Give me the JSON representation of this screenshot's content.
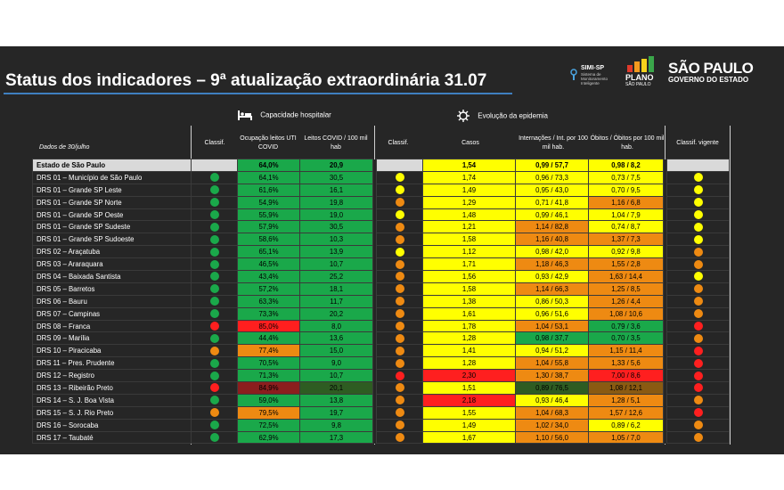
{
  "title": "Status dos indicadores – 9ª atualização extraordinária 31.07",
  "logos": {
    "simi": "SIMI-SP",
    "simi_sub": "Sistema de Monitoramento Inteligente",
    "plano_l1": "PLANO",
    "plano_l2": "SÃO PAULO",
    "sp_l1": "SÃO PAULO",
    "sp_l2": "GOVERNO DO ESTADO"
  },
  "sections": {
    "capacidade": "Capacidade hospitalar",
    "evolucao": "Evolução da epidemia"
  },
  "headers": {
    "dados": "Dados de 30/julho",
    "classif1": "Classif.",
    "ocupacao": "Ocupação leitos UTI COVID",
    "leitos": "Leitos COVID / 100 mil hab",
    "classif2": "Classif.",
    "casos": "Casos",
    "internacoes": "Internações / Int. por 100 mil hab.",
    "obitos": "Óbitos / Óbitos por 100 mil hab.",
    "vigente": "Classif. vigente"
  },
  "colors": {
    "green": "#1aa84a",
    "yellow": "#ffff00",
    "orange": "#ee8a12",
    "red": "#ff1f1f",
    "dark_red": "#8b1e1e",
    "dark_green": "#2e5c22",
    "dark_orange": "#8a5a12"
  },
  "rows": [
    {
      "name": "Estado de São Paulo",
      "c1": "",
      "ocup": "64,0%",
      "ocup_c": "g",
      "leitos": "20,9",
      "leitos_c": "g",
      "c2": "",
      "casos": "1,54",
      "casos_c": "y",
      "int": "0,99 / 57,7",
      "int_c": "y",
      "obi": "0,98 / 8,2",
      "obi_c": "y",
      "vig": "",
      "state": true
    },
    {
      "name": "DRS 01 – Município de São Paulo",
      "c1": "g",
      "ocup": "64,1%",
      "ocup_c": "g",
      "leitos": "30,5",
      "leitos_c": "g",
      "c2": "y",
      "casos": "1,74",
      "casos_c": "y",
      "int": "0,96 / 73,3",
      "int_c": "y",
      "obi": "0,73 / 7,5",
      "obi_c": "y",
      "vig": "y"
    },
    {
      "name": "DRS 01 – Grande SP Leste",
      "c1": "g",
      "ocup": "61,6%",
      "ocup_c": "g",
      "leitos": "16,1",
      "leitos_c": "g",
      "c2": "y",
      "casos": "1,49",
      "casos_c": "y",
      "int": "0,95 / 43,0",
      "int_c": "y",
      "obi": "0,70 / 9,5",
      "obi_c": "y",
      "vig": "y"
    },
    {
      "name": "DRS 01 – Grande SP Norte",
      "c1": "g",
      "ocup": "54,9%",
      "ocup_c": "g",
      "leitos": "19,8",
      "leitos_c": "g",
      "c2": "o",
      "casos": "1,29",
      "casos_c": "y",
      "int": "0,71 / 41,8",
      "int_c": "y",
      "obi": "1,16 / 6,8",
      "obi_c": "o",
      "vig": "y"
    },
    {
      "name": "DRS 01 – Grande SP Oeste",
      "c1": "g",
      "ocup": "55,9%",
      "ocup_c": "g",
      "leitos": "19,0",
      "leitos_c": "g",
      "c2": "y",
      "casos": "1,48",
      "casos_c": "y",
      "int": "0,99 / 46,1",
      "int_c": "y",
      "obi": "1,04 / 7,9",
      "obi_c": "y",
      "vig": "y"
    },
    {
      "name": "DRS 01 – Grande SP Sudeste",
      "c1": "g",
      "ocup": "57,9%",
      "ocup_c": "g",
      "leitos": "30,5",
      "leitos_c": "g",
      "c2": "o",
      "casos": "1,21",
      "casos_c": "y",
      "int": "1,14 / 82,8",
      "int_c": "o",
      "obi": "0,74 / 8,7",
      "obi_c": "y",
      "vig": "y"
    },
    {
      "name": "DRS 01 – Grande SP Sudoeste",
      "c1": "g",
      "ocup": "58,6%",
      "ocup_c": "g",
      "leitos": "10,3",
      "leitos_c": "g",
      "c2": "o",
      "casos": "1,58",
      "casos_c": "y",
      "int": "1,16 / 40,8",
      "int_c": "o",
      "obi": "1,37 / 7,3",
      "obi_c": "o",
      "vig": "y"
    },
    {
      "name": "DRS 02 – Araçatuba",
      "c1": "g",
      "ocup": "65,1%",
      "ocup_c": "g",
      "leitos": "13,9",
      "leitos_c": "g",
      "c2": "y",
      "casos": "1,12",
      "casos_c": "y",
      "int": "0,98 / 42,0",
      "int_c": "y",
      "obi": "0,92 / 9,8",
      "obi_c": "y",
      "vig": "o"
    },
    {
      "name": "DRS 03 – Araraquara",
      "c1": "g",
      "ocup": "46,5%",
      "ocup_c": "g",
      "leitos": "10,7",
      "leitos_c": "g",
      "c2": "o",
      "casos": "1,71",
      "casos_c": "y",
      "int": "1,18 / 46,3",
      "int_c": "o",
      "obi": "1,55 / 2,8",
      "obi_c": "o",
      "vig": "o"
    },
    {
      "name": "DRS 04 – Baixada Santista",
      "c1": "g",
      "ocup": "43,4%",
      "ocup_c": "g",
      "leitos": "25,2",
      "leitos_c": "g",
      "c2": "o",
      "casos": "1,56",
      "casos_c": "y",
      "int": "0,93 / 42,9",
      "int_c": "y",
      "obi": "1,63 / 14,4",
      "obi_c": "o",
      "vig": "y"
    },
    {
      "name": "DRS 05 – Barretos",
      "c1": "g",
      "ocup": "57,2%",
      "ocup_c": "g",
      "leitos": "18,1",
      "leitos_c": "g",
      "c2": "o",
      "casos": "1,58",
      "casos_c": "y",
      "int": "1,14 / 66,3",
      "int_c": "o",
      "obi": "1,25 / 8,5",
      "obi_c": "o",
      "vig": "o"
    },
    {
      "name": "DRS 06 – Bauru",
      "c1": "g",
      "ocup": "63,3%",
      "ocup_c": "g",
      "leitos": "11,7",
      "leitos_c": "g",
      "c2": "o",
      "casos": "1,38",
      "casos_c": "y",
      "int": "0,86 / 50,3",
      "int_c": "y",
      "obi": "1,26 / 4,4",
      "obi_c": "o",
      "vig": "o"
    },
    {
      "name": "DRS 07 – Campinas",
      "c1": "g",
      "ocup": "73,3%",
      "ocup_c": "g",
      "leitos": "20,2",
      "leitos_c": "g",
      "c2": "o",
      "casos": "1,61",
      "casos_c": "y",
      "int": "0,96 / 51,6",
      "int_c": "y",
      "obi": "1,08 / 10,6",
      "obi_c": "o",
      "vig": "o"
    },
    {
      "name": "DRS 08 – Franca",
      "c1": "r",
      "ocup": "85,0%",
      "ocup_c": "r",
      "leitos": "8,0",
      "leitos_c": "g",
      "c2": "o",
      "casos": "1,78",
      "casos_c": "y",
      "int": "1,04 / 53,1",
      "int_c": "o",
      "obi": "0,79 / 3,6",
      "obi_c": "g",
      "vig": "r"
    },
    {
      "name": "DRS 09 – Marília",
      "c1": "g",
      "ocup": "44,4%",
      "ocup_c": "g",
      "leitos": "13,6",
      "leitos_c": "g",
      "c2": "o",
      "casos": "1,28",
      "casos_c": "y",
      "int": "0,98 / 37,7",
      "int_c": "g",
      "obi": "0,70 / 3,5",
      "obi_c": "g",
      "vig": "o"
    },
    {
      "name": "DRS 10 – Piracicaba",
      "c1": "o",
      "ocup": "77,4%",
      "ocup_c": "o",
      "leitos": "15,0",
      "leitos_c": "g",
      "c2": "o",
      "casos": "1,41",
      "casos_c": "y",
      "int": "0,94 / 51,2",
      "int_c": "y",
      "obi": "1,15 / 11,4",
      "obi_c": "o",
      "vig": "r"
    },
    {
      "name": "DRS 11 – Pres. Prudente",
      "c1": "g",
      "ocup": "70,5%",
      "ocup_c": "g",
      "leitos": "9,0",
      "leitos_c": "g",
      "c2": "o",
      "casos": "1,28",
      "casos_c": "y",
      "int": "1,04 / 55,8",
      "int_c": "o",
      "obi": "1,33 / 5,6",
      "obi_c": "o",
      "vig": "r"
    },
    {
      "name": "DRS 12 – Registro",
      "c1": "g",
      "ocup": "71,3%",
      "ocup_c": "g",
      "leitos": "10,7",
      "leitos_c": "g",
      "c2": "r",
      "casos": "2,30",
      "casos_c": "r",
      "int": "1,30 / 38,7",
      "int_c": "o",
      "obi": "7,00 / 8,6",
      "obi_c": "r",
      "vig": "r"
    },
    {
      "name": "DRS 13 – Ribeirão Preto",
      "c1": "r",
      "ocup": "84,9%",
      "ocup_c": "dg",
      "leitos": "20,1",
      "leitos_c": "dkg",
      "c2": "o",
      "casos": "1,51",
      "casos_c": "y",
      "int": "0,89 / 76,5",
      "int_c": "dkg",
      "obi": "1,08 / 12,1",
      "obi_c": "dko",
      "vig": "r"
    },
    {
      "name": "DRS 14 – S. J. Boa Vista",
      "c1": "g",
      "ocup": "59,0%",
      "ocup_c": "g",
      "leitos": "13,8",
      "leitos_c": "g",
      "c2": "o",
      "casos": "2,18",
      "casos_c": "r",
      "int": "0,93 / 46,4",
      "int_c": "y",
      "obi": "1,28 / 5,1",
      "obi_c": "o",
      "vig": "o"
    },
    {
      "name": "DRS 15 – S. J. Rio Preto",
      "c1": "o",
      "ocup": "79,5%",
      "ocup_c": "o",
      "leitos": "19,7",
      "leitos_c": "g",
      "c2": "o",
      "casos": "1,55",
      "casos_c": "y",
      "int": "1,04 / 68,3",
      "int_c": "o",
      "obi": "1,57 / 12,6",
      "obi_c": "o",
      "vig": "r"
    },
    {
      "name": "DRS 16 – Sorocaba",
      "c1": "g",
      "ocup": "72,5%",
      "ocup_c": "g",
      "leitos": "9,8",
      "leitos_c": "g",
      "c2": "o",
      "casos": "1,49",
      "casos_c": "y",
      "int": "1,02 / 34,0",
      "int_c": "o",
      "obi": "0,89 / 6,2",
      "obi_c": "y",
      "vig": "o"
    },
    {
      "name": "DRS 17 – Taubaté",
      "c1": "g",
      "ocup": "62,9%",
      "ocup_c": "g",
      "leitos": "17,3",
      "leitos_c": "g",
      "c2": "o",
      "casos": "1,67",
      "casos_c": "y",
      "int": "1,10 / 56,0",
      "int_c": "o",
      "obi": "1,05 / 7,0",
      "obi_c": "o",
      "vig": "o"
    }
  ]
}
